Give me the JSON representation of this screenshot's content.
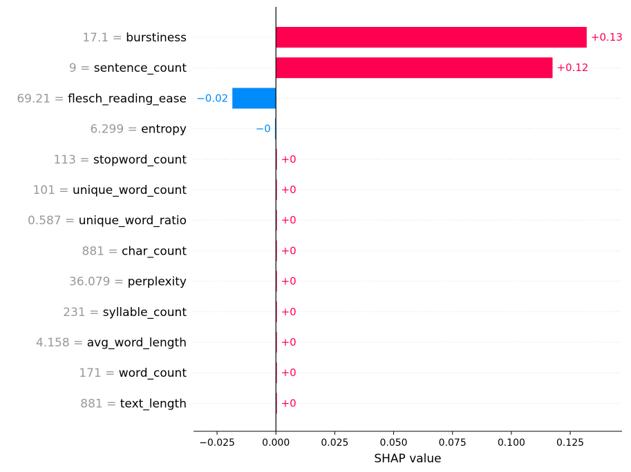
{
  "chart_data": {
    "type": "bar",
    "orientation": "horizontal",
    "features": [
      {
        "value": "17.1",
        "name": "burstiness",
        "shap": 0.132,
        "label": "+0.13"
      },
      {
        "value": "9",
        "name": "sentence_count",
        "shap": 0.1175,
        "label": "+0.12"
      },
      {
        "value": "69.21",
        "name": "flesch_reading_ease",
        "shap": -0.0185,
        "label": "−0.02"
      },
      {
        "value": "6.299",
        "name": "entropy",
        "shap": -0.0004,
        "label": "−0"
      },
      {
        "value": "113",
        "name": "stopword_count",
        "shap": 0.0004,
        "label": "+0"
      },
      {
        "value": "101",
        "name": "unique_word_count",
        "shap": 0.0004,
        "label": "+0"
      },
      {
        "value": "0.587",
        "name": "unique_word_ratio",
        "shap": 0.0004,
        "label": "+0"
      },
      {
        "value": "881",
        "name": "char_count",
        "shap": 0.0004,
        "label": "+0"
      },
      {
        "value": "36.079",
        "name": "perplexity",
        "shap": 0.0004,
        "label": "+0"
      },
      {
        "value": "231",
        "name": "syllable_count",
        "shap": 0.0004,
        "label": "+0"
      },
      {
        "value": "4.158",
        "name": "avg_word_length",
        "shap": 0.0004,
        "label": "+0"
      },
      {
        "value": "171",
        "name": "word_count",
        "shap": 0.0004,
        "label": "+0"
      },
      {
        "value": "881",
        "name": "text_length",
        "shap": 0.0004,
        "label": "+0"
      }
    ],
    "xlabel": "SHAP value",
    "xlim": [
      -0.035,
      0.147
    ],
    "xticks": [
      -0.025,
      0.0,
      0.025,
      0.05,
      0.075,
      0.1,
      0.125
    ],
    "xtick_labels": [
      "−0.025",
      "0.000",
      "0.025",
      "0.050",
      "0.075",
      "0.100",
      "0.125"
    ],
    "colors": {
      "positive": "#ff0051",
      "negative": "#008bfb",
      "feature_value": "#999999",
      "feature_name": "#000000"
    },
    "grid": "dotted horizontal row lines"
  }
}
